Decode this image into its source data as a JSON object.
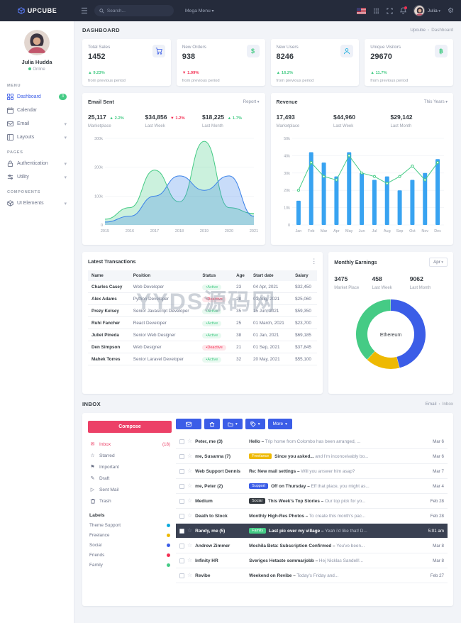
{
  "topbar": {
    "brand": "UPCUBE",
    "search_placeholder": "Search...",
    "mega_menu": "Mega Menu",
    "user": "Julia"
  },
  "sidebar": {
    "name": "Julia Hudda",
    "status": "Online",
    "headers": [
      "MENU",
      "PAGES",
      "COMPONENTS"
    ],
    "items": [
      {
        "label": "Dashboard",
        "badge": "3"
      },
      {
        "label": "Calendar"
      },
      {
        "label": "Email"
      },
      {
        "label": "Layouts"
      },
      {
        "label": "Authentication"
      },
      {
        "label": "Utility"
      },
      {
        "label": "UI Elements"
      }
    ]
  },
  "page": {
    "title": "DASHBOARD",
    "breadcrumb_root": "Upcube",
    "breadcrumb_current": "Dashboard"
  },
  "stats": [
    {
      "title": "Total Sales",
      "value": "1452",
      "delta": "▲ 9.23%",
      "dir": "up",
      "note": "from previous period"
    },
    {
      "title": "New Orders",
      "value": "938",
      "delta": "▼ 1.09%",
      "dir": "down",
      "note": "from previous period"
    },
    {
      "title": "New Users",
      "value": "8246",
      "delta": "▲ 16.2%",
      "dir": "up",
      "note": "from previous period"
    },
    {
      "title": "Unique Visitors",
      "value": "29670",
      "delta": "▲ 11.7%",
      "dir": "up",
      "note": "from previous period"
    }
  ],
  "email_sent": {
    "title": "Email Sent",
    "menu": "Report",
    "stats": [
      {
        "value": "25,117",
        "delta": "▲ 2.2%",
        "dir": "up",
        "label": "Marketplace"
      },
      {
        "value": "$34,856",
        "delta": "▼ 1.2%",
        "dir": "down",
        "label": "Last Week"
      },
      {
        "value": "$18,225",
        "delta": "▲ 1.7%",
        "dir": "up",
        "label": "Last Month"
      }
    ]
  },
  "revenue": {
    "title": "Revenue",
    "menu": "This Years",
    "stats": [
      {
        "value": "17,493",
        "label": "Marketplace"
      },
      {
        "value": "$44,960",
        "label": "Last Week"
      },
      {
        "value": "$29,142",
        "label": "Last Month"
      }
    ]
  },
  "transactions": {
    "title": "Latest Transactions",
    "columns": [
      "Name",
      "Position",
      "Status",
      "Age",
      "Start date",
      "Salary"
    ],
    "rows": [
      {
        "name": "Charles Casey",
        "position": "Web Developer",
        "status": "Active",
        "age": "23",
        "date": "04 Apr, 2021",
        "salary": "$32,450"
      },
      {
        "name": "Alex Adams",
        "position": "Python Developer",
        "status": "Deactive",
        "age": "28",
        "date": "01 Aug, 2021",
        "salary": "$25,060"
      },
      {
        "name": "Prezy Kelsey",
        "position": "Senior Javascript Developer",
        "status": "Active",
        "age": "35",
        "date": "15 Jun, 2021",
        "salary": "$59,350"
      },
      {
        "name": "Ruhi Fancher",
        "position": "React Developer",
        "status": "Active",
        "age": "25",
        "date": "01 March, 2021",
        "salary": "$23,700"
      },
      {
        "name": "Juliet Pineda",
        "position": "Senior Web Designer",
        "status": "Active",
        "age": "38",
        "date": "01 Jan, 2021",
        "salary": "$69,185"
      },
      {
        "name": "Den Simpson",
        "position": "Web Designer",
        "status": "Deactive",
        "age": "21",
        "date": "01 Sep, 2021",
        "salary": "$37,845"
      },
      {
        "name": "Mahek Torres",
        "position": "Senior Laravel Developer",
        "status": "Active",
        "age": "32",
        "date": "20 May, 2021",
        "salary": "$55,100"
      }
    ]
  },
  "monthly_earnings": {
    "title": "Monthly Earnings",
    "menu": "Apr",
    "stats": [
      {
        "value": "3475",
        "label": "Market Place"
      },
      {
        "value": "458",
        "label": "Last Week"
      },
      {
        "value": "9062",
        "label": "Last Month"
      }
    ],
    "center_label": "Ethereum"
  },
  "inbox": {
    "title": "INBOX",
    "breadcrumb_root": "Email",
    "breadcrumb_current": "Inbox",
    "compose": "Compose",
    "menu": [
      {
        "label": "Inbox",
        "count": "(18)"
      },
      {
        "label": "Starred"
      },
      {
        "label": "Important"
      },
      {
        "label": "Draft"
      },
      {
        "label": "Sent Mail"
      },
      {
        "label": "Trash"
      }
    ],
    "labels_header": "Labels",
    "labels": [
      {
        "label": "Theme Support",
        "color": "#0caadc"
      },
      {
        "label": "Freelance",
        "color": "#eeb902"
      },
      {
        "label": "Social",
        "color": "#3b5de7"
      },
      {
        "label": "Friends",
        "color": "#f32f53"
      },
      {
        "label": "Family",
        "color": "#45cb85"
      }
    ],
    "toolbar_more": "More",
    "messages": [
      {
        "sender": "Peter, me (3)",
        "subject": "Hello –",
        "teaser": " Trip home from Colombo has been arranged, ...",
        "date": "Mar 6"
      },
      {
        "sender": "me, Susanna (7)",
        "badge": "Freelance",
        "subject": "Since you asked...",
        "teaser": " and I'm inconceivably bo...",
        "date": "Mar 6"
      },
      {
        "sender": "Web Support Dennis",
        "subject": "Re: New mail settings –",
        "teaser": " Will you answer him asap?",
        "date": "Mar 7"
      },
      {
        "sender": "me, Peter (2)",
        "badge": "Support",
        "subject": "Off on Thursday –",
        "teaser": " Eff that place, you might as...",
        "date": "Mar 4"
      },
      {
        "sender": "Medium",
        "badge": "Social",
        "subject": "This Week's Top Stories –",
        "teaser": " Our top pick for yo...",
        "date": "Feb 28"
      },
      {
        "sender": "Death to Stock",
        "subject": "Monthly High-Res Photos –",
        "teaser": " To create this month's pac...",
        "date": "Feb 28"
      },
      {
        "sender": "Randy, me (5)",
        "badge": "Family",
        "subject": "Last pic over my village –",
        "teaser": " Yeah i'd like that! D...",
        "date": "5:01 am",
        "selected": true
      },
      {
        "sender": "Andrew Zimmer",
        "subject": "Mochila Beta: Subscription Confirmed –",
        "teaser": " You've been...",
        "date": "Mar 8"
      },
      {
        "sender": "Infinity HR",
        "subject": "Sveriges Hetaste sommarjobb –",
        "teaser": " Hej Nicklas Sandell!...",
        "date": "Mar 8"
      },
      {
        "sender": "Revibe",
        "subject": "Weekend on Revibe –",
        "teaser": " Today's Friday and...",
        "date": "Feb 27"
      }
    ]
  },
  "watermark": "YYDS源码网",
  "chart_data": [
    {
      "type": "area",
      "title": "Email Sent",
      "x": [
        "2015",
        "2016",
        "2017",
        "2018",
        "2019",
        "2020",
        "2021"
      ],
      "series": [
        {
          "name": "series-green",
          "color": "#45cb85",
          "values": [
            20,
            60,
            190,
            80,
            290,
            60,
            40
          ]
        },
        {
          "name": "series-blue",
          "color": "#3b82e8",
          "values": [
            10,
            30,
            100,
            170,
            120,
            170,
            30
          ]
        }
      ],
      "ylim": [
        0,
        300
      ],
      "yticks": [
        "0",
        "100k",
        "200k",
        "300k"
      ],
      "grid": true,
      "legend": "none"
    },
    {
      "type": "bar+line",
      "title": "Revenue",
      "categories": [
        "Jan",
        "Feb",
        "Mar",
        "Apr",
        "May",
        "Jun",
        "Jul",
        "Aug",
        "Sep",
        "Oct",
        "Nov",
        "Dec"
      ],
      "series": [
        {
          "name": "revenue-bars",
          "type": "bar",
          "color": "#38a3f1",
          "values": [
            14,
            42,
            36,
            28,
            42,
            30,
            26,
            28,
            20,
            26,
            30,
            38
          ]
        },
        {
          "name": "revenue-line",
          "type": "line",
          "color": "#45cb85",
          "values": [
            20,
            36,
            28,
            26,
            40,
            30,
            28,
            24,
            28,
            34,
            26,
            36
          ]
        }
      ],
      "ylim": [
        0,
        50
      ],
      "yticks": [
        "0",
        "10k",
        "20k",
        "30k",
        "40k",
        "50k"
      ],
      "grid": true
    },
    {
      "type": "donut",
      "title": "Monthly Earnings",
      "center_label": "Ethereum",
      "slices": [
        {
          "label": "segment-blue",
          "value": 46,
          "color": "#3b5de7"
        },
        {
          "label": "segment-yellow",
          "value": 16,
          "color": "#eeb902"
        },
        {
          "label": "segment-green",
          "value": 38,
          "color": "#45cb85"
        }
      ]
    }
  ]
}
